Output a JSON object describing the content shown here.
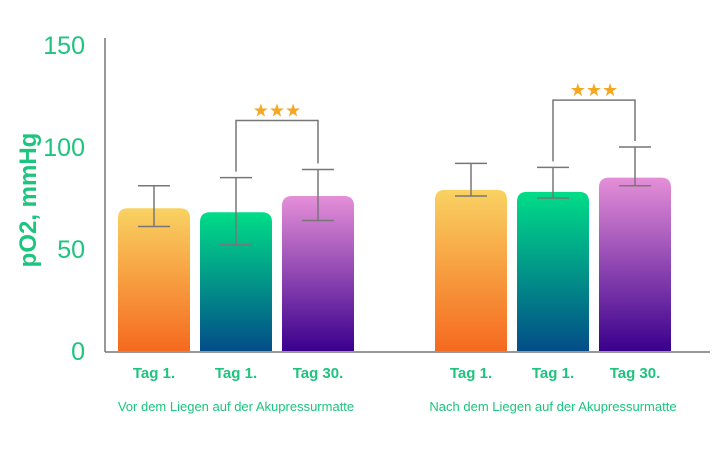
{
  "chart_data": {
    "type": "bar",
    "title": "",
    "ylabel": "pO2, mmHg",
    "xlabel": "",
    "ylim": [
      0,
      150
    ],
    "yticks": [
      0,
      50,
      100,
      150
    ],
    "grid": false,
    "groups": [
      {
        "label": "Vor dem Liegen auf der Akupressurmatte",
        "bars": [
          {
            "label": "Tag 1.",
            "value": 70,
            "err_low": 61,
            "err_high": 81,
            "color": "orange"
          },
          {
            "label": "Tag 1.",
            "value": 68,
            "err_low": 52,
            "err_high": 85,
            "color": "teal"
          },
          {
            "label": "Tag 30.",
            "value": 76,
            "err_low": 64,
            "err_high": 89,
            "color": "purple"
          }
        ],
        "significance": {
          "from": 1,
          "to": 2,
          "label": "★★★",
          "level": 113
        }
      },
      {
        "label": "Nach dem Liegen auf der Akupressurmatte",
        "bars": [
          {
            "label": "Tag 1.",
            "value": 79,
            "err_low": 76,
            "err_high": 92,
            "color": "orange"
          },
          {
            "label": "Tag 1.",
            "value": 78,
            "err_low": 75,
            "err_high": 90,
            "color": "teal"
          },
          {
            "label": "Tag 30.",
            "value": 85,
            "err_low": 81,
            "err_high": 100,
            "color": "purple"
          }
        ],
        "significance": {
          "from": 1,
          "to": 2,
          "label": "★★★",
          "level": 123
        }
      }
    ],
    "colors": {
      "text": "#1cc47e",
      "axis": "#777777",
      "star": "#f5a623",
      "orange": [
        "#f9d262",
        "#f56a1f"
      ],
      "teal": [
        "#00dd88",
        "#034d88"
      ],
      "purple": [
        "#e58fd8",
        "#3a008c"
      ]
    }
  }
}
